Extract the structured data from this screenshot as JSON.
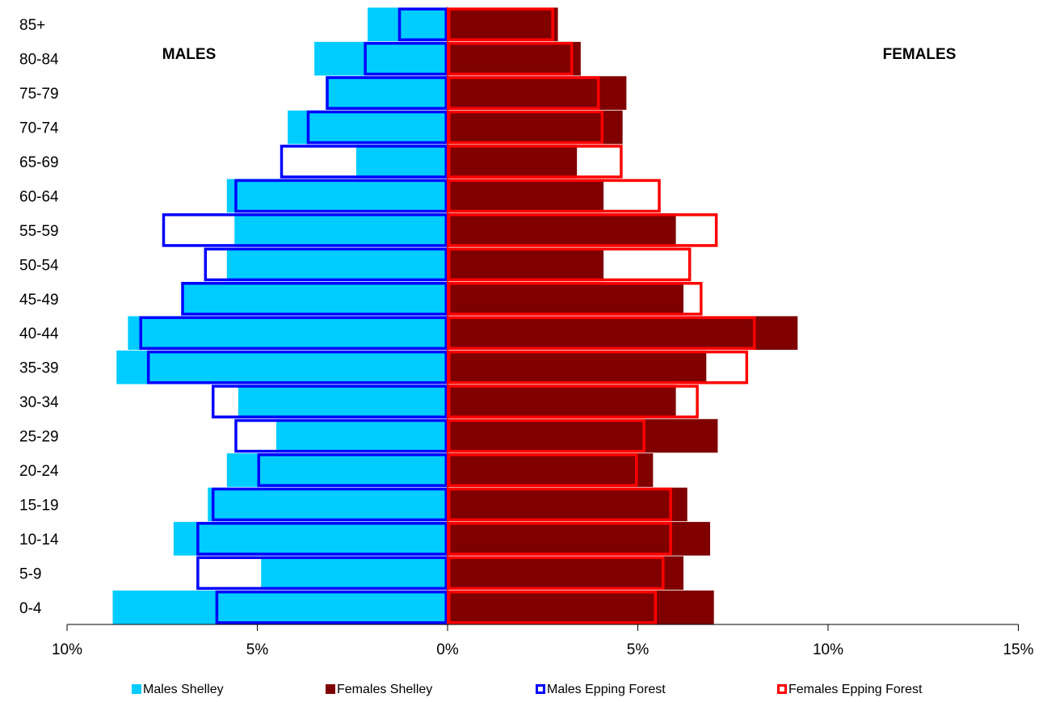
{
  "chart_data": {
    "type": "bar",
    "subtype": "population-pyramid",
    "categories": [
      "0-4",
      "5-9",
      "10-14",
      "15-19",
      "20-24",
      "25-29",
      "30-34",
      "35-39",
      "40-44",
      "45-49",
      "50-54",
      "55-59",
      "60-64",
      "65-69",
      "70-74",
      "75-79",
      "80-84",
      "85+"
    ],
    "series": [
      {
        "name": "Males Shelley",
        "side": "left",
        "style": "filled",
        "color": "#00ccff",
        "values": [
          8.8,
          4.9,
          7.2,
          6.3,
          5.8,
          4.5,
          5.5,
          8.7,
          8.4,
          7.0,
          5.8,
          5.6,
          5.8,
          2.4,
          4.2,
          3.2,
          3.5,
          2.1
        ]
      },
      {
        "name": "Females Shelley",
        "side": "right",
        "style": "filled",
        "color": "#800000",
        "values": [
          7.0,
          6.2,
          6.9,
          6.3,
          5.4,
          7.1,
          6.0,
          6.8,
          9.2,
          6.2,
          4.1,
          6.0,
          4.1,
          3.4,
          4.6,
          4.7,
          3.5,
          2.9
        ]
      },
      {
        "name": "Males Epping Forest",
        "side": "left",
        "style": "outline",
        "color": "#0000ff",
        "values": [
          6.1,
          6.6,
          6.6,
          6.2,
          5.0,
          5.6,
          6.2,
          7.9,
          8.1,
          7.0,
          6.4,
          7.5,
          5.6,
          4.4,
          3.7,
          3.2,
          2.2,
          1.3
        ]
      },
      {
        "name": "Females Epping Forest",
        "side": "right",
        "style": "outline",
        "color": "#ff0000",
        "values": [
          5.5,
          5.7,
          5.9,
          5.9,
          5.0,
          5.2,
          6.6,
          7.9,
          8.1,
          6.7,
          6.4,
          7.1,
          5.6,
          4.6,
          4.1,
          4.0,
          3.3,
          2.8
        ]
      }
    ],
    "x_ticks": [
      "10%",
      "5%",
      "0%",
      "5%",
      "10%",
      "15%"
    ],
    "x_tick_values": [
      -10,
      -5,
      0,
      5,
      10,
      15
    ],
    "xlim": [
      -10,
      15
    ],
    "left_label": "MALES",
    "right_label": "FEMALES",
    "legend_position": "bottom",
    "grid": false
  }
}
